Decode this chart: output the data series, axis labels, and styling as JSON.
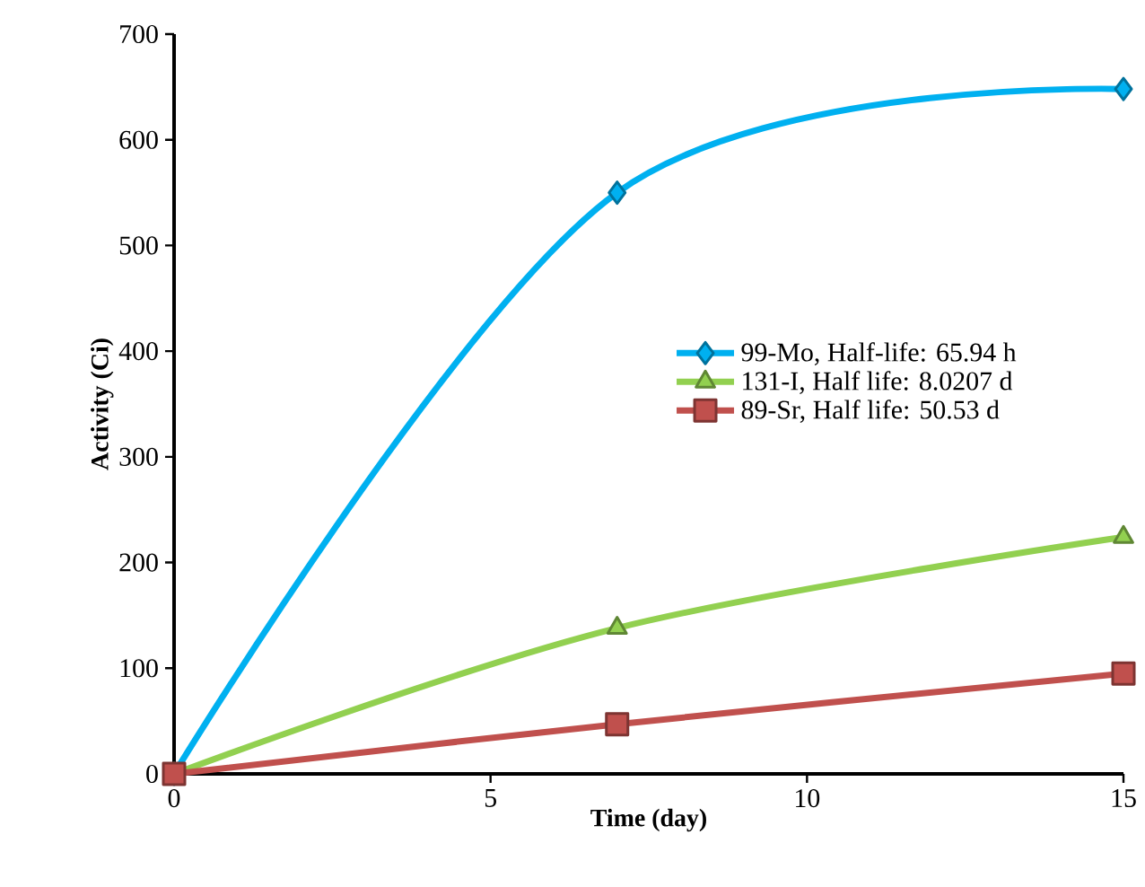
{
  "chart_data": {
    "type": "line",
    "xlabel": "Time (day)",
    "ylabel": "Activity (Ci)",
    "x": [
      0,
      7,
      15
    ],
    "series": [
      {
        "name": "99-Mo, Half-life: 65.94 h",
        "color": "#00b0f0",
        "values": [
          0,
          550,
          648
        ],
        "marker": "diamond"
      },
      {
        "name": "131-I, Half life: 8.0207 d",
        "color": "#92d050",
        "values": [
          0,
          138,
          224
        ],
        "marker": "triangle"
      },
      {
        "name": "89-Sr, Half life: 50.53 d",
        "color": "#c0504d",
        "values": [
          0,
          47,
          95
        ],
        "marker": "square"
      }
    ],
    "xlim": [
      0,
      15
    ],
    "xticks": [
      0,
      5,
      10,
      15
    ],
    "ylim": [
      0,
      700
    ],
    "yticks": [
      0,
      100,
      200,
      300,
      400,
      500,
      600,
      700
    ],
    "grid": false,
    "legend": "right",
    "line_style": "solid"
  }
}
